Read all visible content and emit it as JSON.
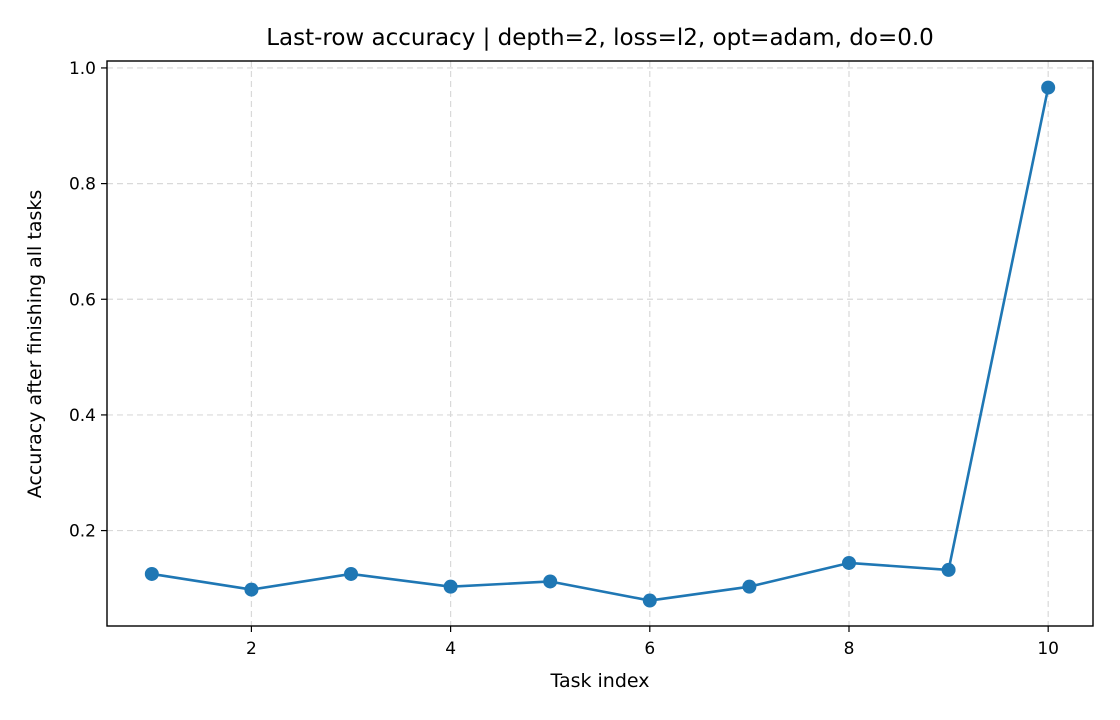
{
  "chart_data": {
    "type": "line",
    "title": "Last-row accuracy | depth=2, loss=l2, opt=adam, do=0.0",
    "xlabel": "Task index",
    "ylabel": "Accuracy after finishing all tasks",
    "x": [
      1,
      2,
      3,
      4,
      5,
      6,
      7,
      8,
      9,
      10
    ],
    "series": [
      {
        "values": [
          0.125,
          0.098,
          0.125,
          0.103,
          0.112,
          0.079,
          0.103,
          0.144,
          0.132,
          0.966
        ],
        "color": "#1f77b4",
        "marker": "circle"
      }
    ],
    "xlim": [
      0.55,
      10.45
    ],
    "ylim": [
      0.035,
      1.012
    ],
    "xticks": [
      2,
      4,
      6,
      8,
      10
    ],
    "xtick_labels": [
      "2",
      "4",
      "6",
      "8",
      "10"
    ],
    "yticks": [
      0.2,
      0.4,
      0.6,
      0.8,
      1.0
    ],
    "ytick_labels": [
      "0.2",
      "0.4",
      "0.6",
      "0.8",
      "1.0"
    ],
    "grid": true,
    "legend": "none"
  }
}
